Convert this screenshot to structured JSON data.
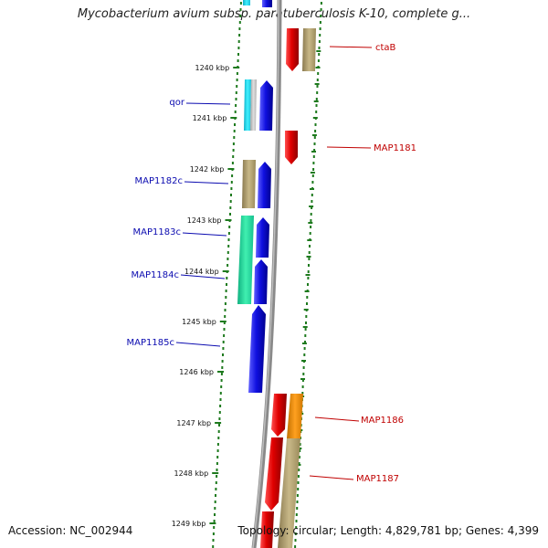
{
  "title": "Mycobacterium avium subsp. paratuberculosis K-10, complete g...",
  "footer": {
    "accession": "Accession: NC_002944",
    "topology": "Topology: circular; Length: 4,829,781 bp; Genes: 4,399"
  },
  "colors": {
    "backbone": "#8a8a8a",
    "tick": "#1e7a1e",
    "forward_strand_label": "#c00000",
    "reverse_strand_label": "#0b0bb0",
    "blue_gene": "#1010e0",
    "red_gene": "#e00000",
    "olive_cog": "#b8a870",
    "cyan_cog": "#30e0f0",
    "teal_cog": "#30e0a0",
    "orange_cog": "#f09000",
    "grey_cog": "#c8c8c8"
  },
  "tick_labels": [
    "1240 kbp",
    "1241 kbp",
    "1242 kbp",
    "1243 kbp",
    "1244 kbp",
    "1245 kbp",
    "1246 kbp",
    "1247 kbp",
    "1248 kbp",
    "1249 kbp"
  ],
  "genes": [
    {
      "name": "ctaB",
      "strand": "forward"
    },
    {
      "name": "qor",
      "strand": "reverse"
    },
    {
      "name": "MAP1181",
      "strand": "forward"
    },
    {
      "name": "MAP1182c",
      "strand": "reverse"
    },
    {
      "name": "MAP1183c",
      "strand": "reverse"
    },
    {
      "name": "MAP1184c",
      "strand": "reverse"
    },
    {
      "name": "MAP1185c",
      "strand": "reverse"
    },
    {
      "name": "MAP1186",
      "strand": "forward"
    },
    {
      "name": "MAP1187",
      "strand": "forward"
    }
  ]
}
